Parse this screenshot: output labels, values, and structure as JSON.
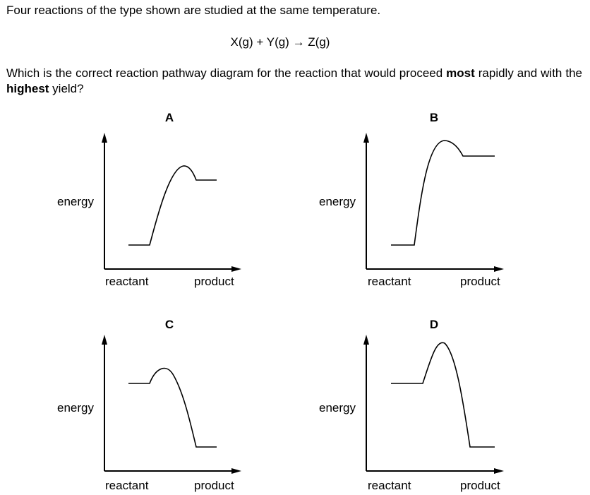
{
  "question": {
    "intro": "Four reactions of the type shown are studied at the same temperature.",
    "equation": "X(g) + Y(g) → Z(g)",
    "prompt": [
      "Which is the correct reaction pathway diagram for the reaction that would proceed ",
      "most",
      " rapidly and with the ",
      "highest",
      " yield?"
    ]
  },
  "options": [
    {
      "label": "A",
      "y_axis": "energy",
      "x_start": "reactant",
      "x_end": "product"
    },
    {
      "label": "B",
      "y_axis": "energy",
      "x_start": "reactant",
      "x_end": "product"
    },
    {
      "label": "C",
      "y_axis": "energy",
      "x_start": "reactant",
      "x_end": "product"
    },
    {
      "label": "D",
      "y_axis": "energy",
      "x_start": "reactant",
      "x_end": "product"
    }
  ]
}
